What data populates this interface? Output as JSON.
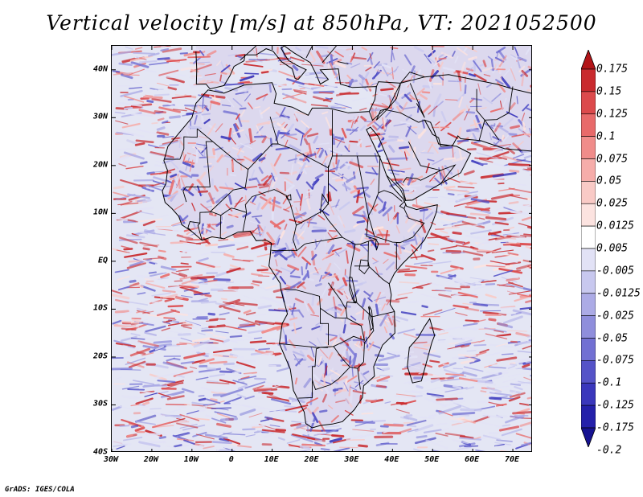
{
  "title": "Vertical velocity [m/s] at 850hPa, VT: 2021052500",
  "footer": "GrADS: IGES/COLA",
  "map": {
    "region": "Africa",
    "lon_range": [
      -30,
      75
    ],
    "lat_range": [
      -40,
      45
    ],
    "lat_labels": [
      "40N",
      "30N",
      "20N",
      "10N",
      "EQ",
      "10S",
      "20S",
      "30S",
      "40S"
    ],
    "lon_labels": [
      "30W",
      "20W",
      "10W",
      "0",
      "10E",
      "20E",
      "30E",
      "40E",
      "50E",
      "60E",
      "70E"
    ],
    "ocean_base_color": "#e4e6f4",
    "land_base_color": "#dcd8ee"
  },
  "colorbar": {
    "labels": [
      "0.175",
      "0.15",
      "0.125",
      "0.1",
      "0.075",
      "0.05",
      "0.025",
      "0.0125",
      "0.005",
      "-0.005",
      "-0.0125",
      "-0.025",
      "-0.05",
      "-0.075",
      "-0.1",
      "-0.125",
      "-0.175",
      "-0.2"
    ],
    "colors": [
      "#b21418",
      "#c92a2e",
      "#dc4a4c",
      "#e86a6a",
      "#f08c8a",
      "#f6adaa",
      "#f9cac6",
      "#fce3e0",
      "#ffffff",
      "#e2e2f6",
      "#c8c8ef",
      "#acabe6",
      "#8f8edc",
      "#7270d3",
      "#5553c8",
      "#3a37bc",
      "#2420aa",
      "#161291"
    ]
  }
}
